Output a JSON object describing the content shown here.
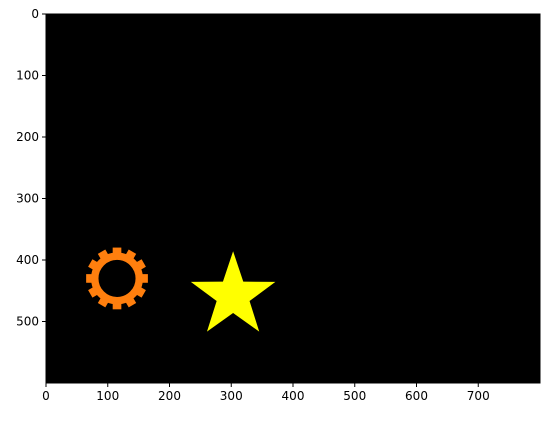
{
  "chart_data": {
    "type": "image",
    "title": "",
    "xlabel": "",
    "ylabel": "",
    "xlim": [
      0,
      800
    ],
    "ylim": [
      600,
      0
    ],
    "y_axis_inverted": true,
    "grid": false,
    "xticks": [
      0,
      100,
      200,
      300,
      400,
      500,
      600,
      700
    ],
    "yticks": [
      0,
      100,
      200,
      300,
      400,
      500
    ],
    "xtick_labels": [
      "0",
      "100",
      "200",
      "300",
      "400",
      "500",
      "600",
      "700"
    ],
    "ytick_labels": [
      "0",
      "100",
      "200",
      "300",
      "400",
      "500"
    ],
    "background_color": "#000000",
    "shapes": [
      {
        "kind": "gear",
        "center": [
          115,
          430
        ],
        "outer_radius": 50,
        "inner_radius": 30,
        "teeth": 12,
        "color": "#ff7f0e",
        "icon": "gear-icon"
      },
      {
        "kind": "star",
        "center": [
          303,
          458
        ],
        "outer_radius": 72,
        "inner_radius": 28,
        "points": 5,
        "color": "#ffff00",
        "icon": "star-icon"
      }
    ]
  }
}
